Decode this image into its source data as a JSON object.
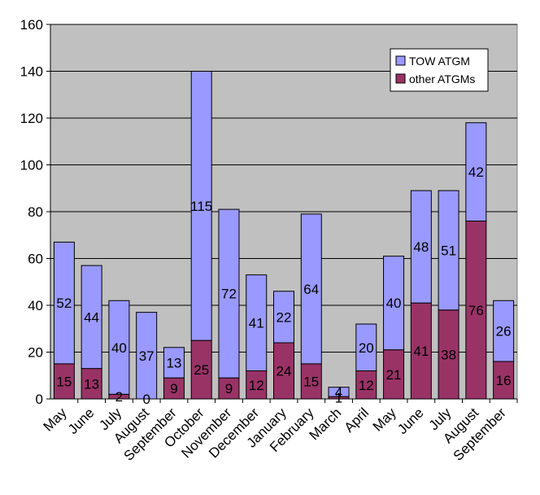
{
  "chart_data": {
    "type": "bar",
    "stacked": true,
    "title": "",
    "xlabel": "",
    "ylabel": "",
    "ylim": [
      0,
      160
    ],
    "yticks": [
      0,
      20,
      40,
      60,
      80,
      100,
      120,
      140,
      160
    ],
    "grid": true,
    "legend_position": "top-right",
    "categories": [
      "May",
      "June",
      "July",
      "August",
      "September",
      "October",
      "November",
      "December",
      "January",
      "February",
      "March",
      "April",
      "May",
      "June",
      "July",
      "August",
      "September"
    ],
    "series": [
      {
        "name": "other ATGMs",
        "color": "#993366",
        "values": [
          15,
          13,
          2,
          0,
          9,
          25,
          9,
          12,
          24,
          15,
          1,
          12,
          21,
          41,
          38,
          76,
          16
        ]
      },
      {
        "name": "TOW ATGM",
        "color": "#9999ff",
        "values": [
          52,
          44,
          40,
          37,
          13,
          115,
          72,
          41,
          22,
          64,
          4,
          20,
          40,
          48,
          51,
          42,
          26
        ]
      }
    ],
    "legend_order": [
      "TOW ATGM",
      "other ATGMs"
    ],
    "plot_background": "#c0c0c0"
  }
}
